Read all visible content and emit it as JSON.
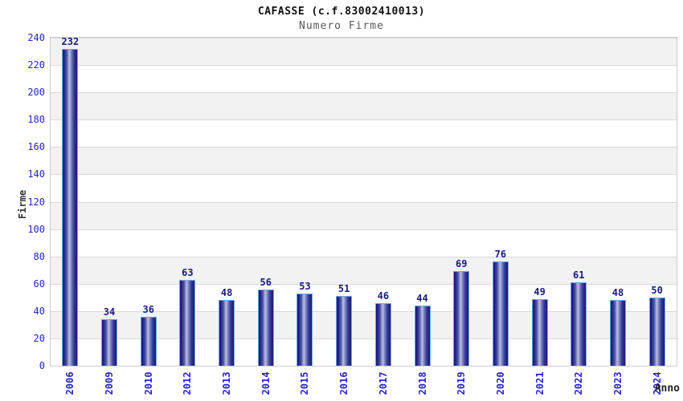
{
  "chart_data": {
    "type": "bar",
    "title": "CAFASSE (c.f.83002410013)",
    "subtitle": "Numero Firme",
    "xlabel": "Anno",
    "ylabel": "Firme",
    "categories": [
      "2006",
      "2009",
      "2010",
      "2012",
      "2013",
      "2014",
      "2015",
      "2016",
      "2017",
      "2018",
      "2019",
      "2020",
      "2021",
      "2022",
      "2023",
      "2024"
    ],
    "values": [
      232,
      34,
      36,
      63,
      48,
      56,
      53,
      51,
      46,
      44,
      69,
      76,
      49,
      61,
      48,
      50
    ],
    "ylim": [
      0,
      240
    ],
    "ytick_step": 20,
    "yticks": [
      0,
      20,
      40,
      60,
      80,
      100,
      120,
      140,
      160,
      180,
      200,
      220,
      240
    ],
    "grid": true,
    "legend": false,
    "band_alternating": true
  },
  "colors": {
    "bar_edge": "#191975",
    "bar_mid": "#4d55a8",
    "bar_highlight": "#bcc1e0",
    "bar_border": "#6ea9de",
    "value_label": "#1a1a80",
    "tick_label": "#2525cc",
    "band_gray": "#f2f2f2",
    "gridline": "#d9d9d9",
    "plot_border": "#cccccc",
    "title": "#111111",
    "subtitle": "#5a5a5a",
    "axis_title": "#333333"
  }
}
